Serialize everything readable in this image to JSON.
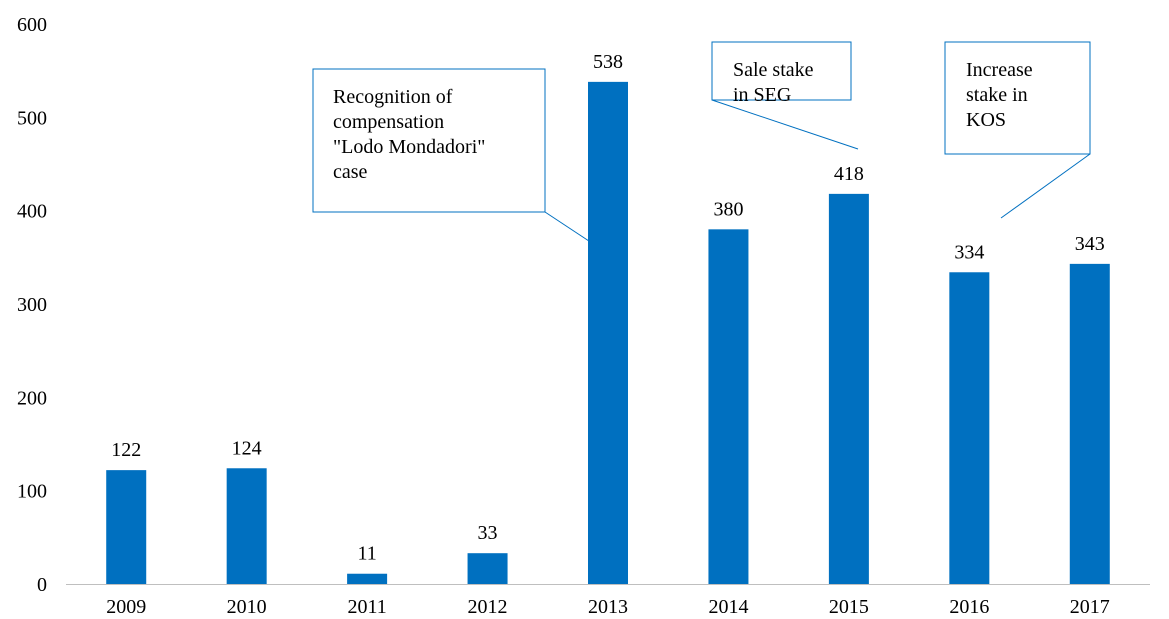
{
  "chart_data": {
    "type": "bar",
    "categories": [
      "2009",
      "2010",
      "2011",
      "2012",
      "2013",
      "2014",
      "2015",
      "2016",
      "2017"
    ],
    "values": [
      122,
      124,
      11,
      33,
      538,
      380,
      418,
      334,
      343
    ],
    "data_labels": [
      "122",
      "124",
      "11",
      "33",
      "538",
      "380",
      "418",
      "334",
      "343"
    ],
    "yticks": [
      "0",
      "100",
      "200",
      "300",
      "400",
      "500",
      "600"
    ],
    "ylim": [
      0,
      600
    ],
    "grid": false,
    "colors": {
      "bar": "#0070c0",
      "callout_border": "#0070c0",
      "axis": "#bfbfbf"
    },
    "annotations": [
      {
        "target": "2013",
        "lines": [
          "Recognition of",
          "compensation",
          "\"Lodo Mondadori\"",
          "case"
        ]
      },
      {
        "target": "2015",
        "lines": [
          "Sale stake",
          "in SEG"
        ]
      },
      {
        "target": "2016",
        "lines": [
          "Increase",
          "stake in",
          "KOS"
        ]
      }
    ]
  }
}
